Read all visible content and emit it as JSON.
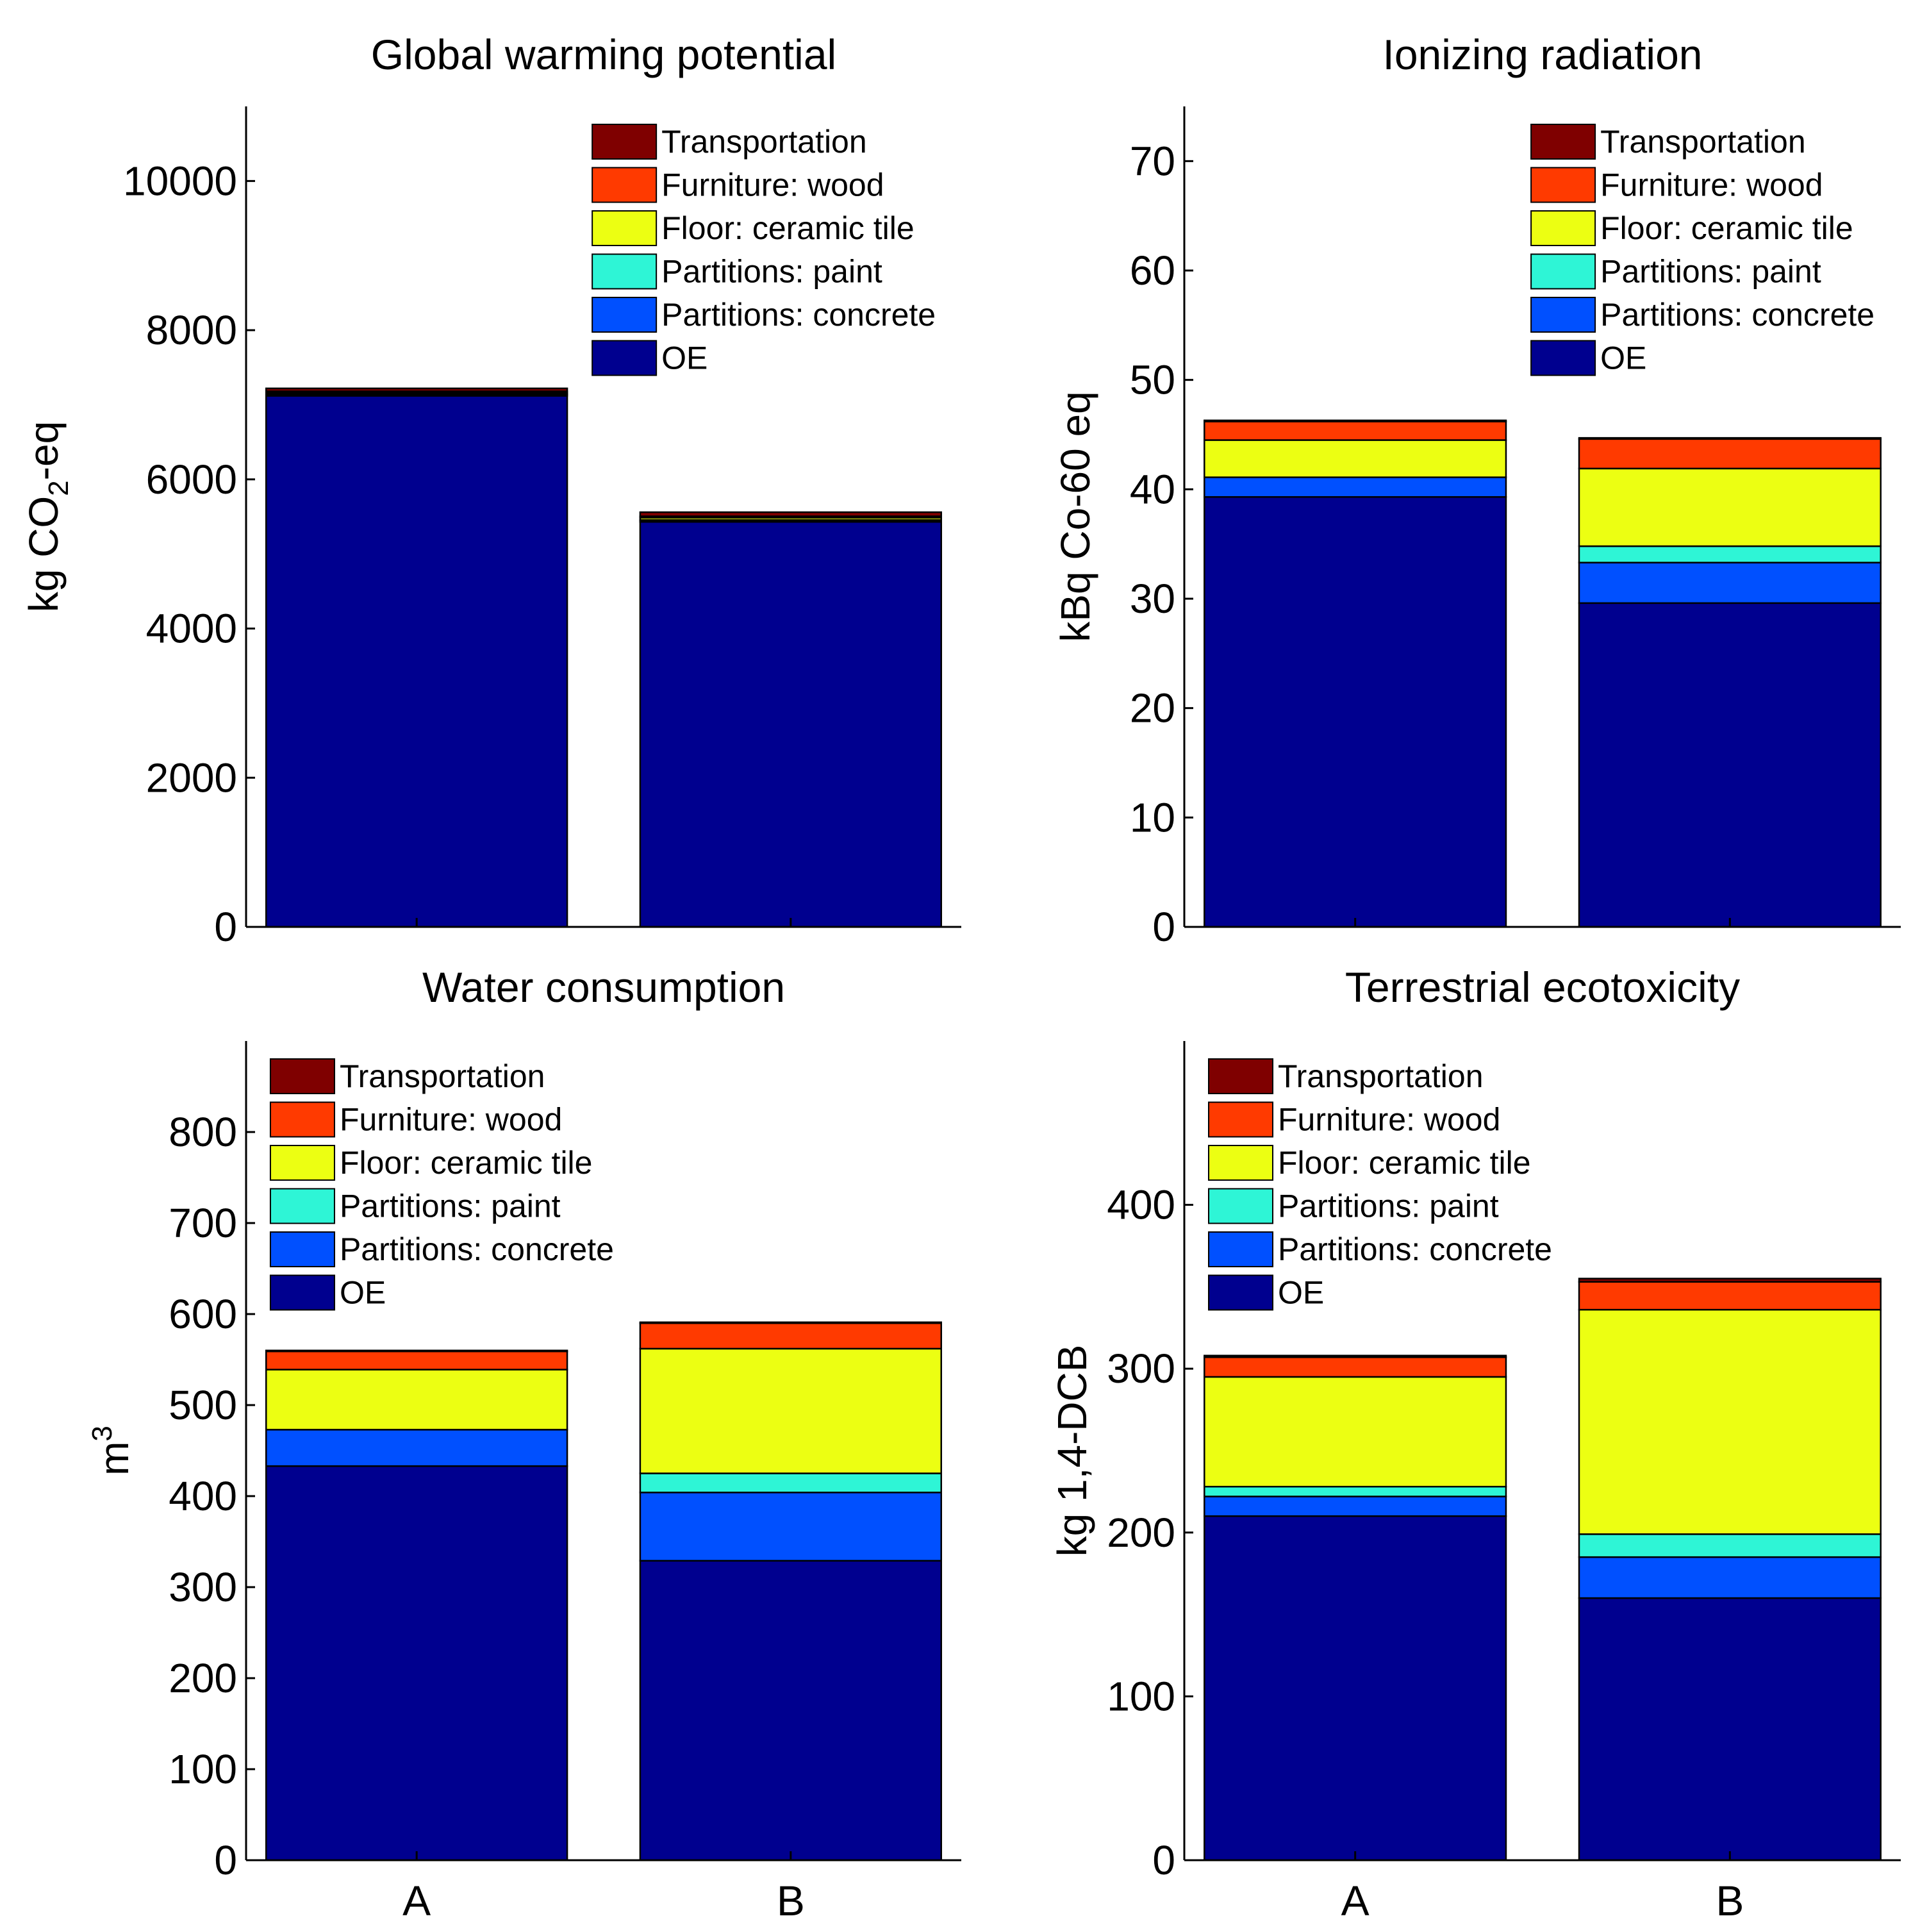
{
  "figure": {
    "panel_count": 4
  },
  "colors": {
    "Transportation": "#7f0000",
    "Furniture: wood": "#ff3a00",
    "Floor: ceramic tile": "#ecff12",
    "Partitions: paint": "#2ef5d6",
    "Partitions: concrete": "#0050ff",
    "OE": "#00008f",
    "axis": "#000000",
    "background": "#ffffff"
  },
  "legend_order": [
    "Transportation",
    "Furniture: wood",
    "Floor: ceramic tile",
    "Partitions: paint",
    "Partitions: concrete",
    "OE"
  ],
  "chart_data": [
    {
      "type": "bar",
      "stacked": true,
      "title": "Global warming potential",
      "ylabel": "kg CO₂-eq",
      "ylabel_parts": [
        "kg CO",
        "2",
        "-eq"
      ],
      "ylim": [
        0,
        11000
      ],
      "yticks": [
        0,
        2000,
        4000,
        6000,
        8000,
        10000
      ],
      "categories": [
        "A",
        "B"
      ],
      "show_xticklabels": false,
      "legend_position": "top-right",
      "series": [
        {
          "name": "OE",
          "values": [
            7120,
            5430
          ]
        },
        {
          "name": "Partitions: concrete",
          "values": [
            20,
            20
          ]
        },
        {
          "name": "Partitions: paint",
          "values": [
            5,
            5
          ]
        },
        {
          "name": "Floor: ceramic tile",
          "values": [
            20,
            30
          ]
        },
        {
          "name": "Furniture: wood",
          "values": [
            15,
            20
          ]
        },
        {
          "name": "Transportation",
          "values": [
            40,
            55
          ]
        }
      ]
    },
    {
      "type": "bar",
      "stacked": true,
      "title": "Ionizing radiation",
      "ylabel": "kBq Co-60 eq",
      "ylim": [
        0,
        75
      ],
      "yticks": [
        0,
        10,
        20,
        30,
        40,
        50,
        60,
        70
      ],
      "categories": [
        "A",
        "B"
      ],
      "show_xticklabels": false,
      "legend_position": "top-right",
      "series": [
        {
          "name": "OE",
          "values": [
            39.3,
            29.6
          ]
        },
        {
          "name": "Partitions: concrete",
          "values": [
            1.8,
            3.7
          ]
        },
        {
          "name": "Partitions: paint",
          "values": [
            0.0,
            1.5
          ]
        },
        {
          "name": "Floor: ceramic tile",
          "values": [
            3.4,
            7.1
          ]
        },
        {
          "name": "Furniture: wood",
          "values": [
            1.7,
            2.7
          ]
        },
        {
          "name": "Transportation",
          "values": [
            0.1,
            0.1
          ]
        }
      ]
    },
    {
      "type": "bar",
      "stacked": true,
      "title": "Water consumption",
      "ylabel": "m³",
      "ylabel_parts": [
        "m",
        "3"
      ],
      "ylim": [
        0,
        900
      ],
      "yticks": [
        0,
        100,
        200,
        300,
        400,
        500,
        600,
        700,
        800
      ],
      "categories": [
        "A",
        "B"
      ],
      "show_xticklabels": true,
      "legend_position": "top-left",
      "series": [
        {
          "name": "OE",
          "values": [
            433,
            329
          ]
        },
        {
          "name": "Partitions: concrete",
          "values": [
            40,
            75
          ]
        },
        {
          "name": "Partitions: paint",
          "values": [
            0,
            21
          ]
        },
        {
          "name": "Floor: ceramic tile",
          "values": [
            66,
            137
          ]
        },
        {
          "name": "Furniture: wood",
          "values": [
            20,
            28
          ]
        },
        {
          "name": "Transportation",
          "values": [
            1,
            1
          ]
        }
      ]
    },
    {
      "type": "bar",
      "stacked": true,
      "title": "Terrestrial ecotoxicity",
      "ylabel": "kg 1,4-DCB",
      "ylim": [
        0,
        500
      ],
      "yticks": [
        0,
        100,
        200,
        300,
        400
      ],
      "categories": [
        "A",
        "B"
      ],
      "show_xticklabels": true,
      "legend_position": "top-left",
      "series": [
        {
          "name": "OE",
          "values": [
            210,
            160
          ]
        },
        {
          "name": "Partitions: concrete",
          "values": [
            12,
            25
          ]
        },
        {
          "name": "Partitions: paint",
          "values": [
            6,
            14
          ]
        },
        {
          "name": "Floor: ceramic tile",
          "values": [
            67,
            137
          ]
        },
        {
          "name": "Furniture: wood",
          "values": [
            12,
            17
          ]
        },
        {
          "name": "Transportation",
          "values": [
            1,
            2
          ]
        }
      ]
    }
  ]
}
